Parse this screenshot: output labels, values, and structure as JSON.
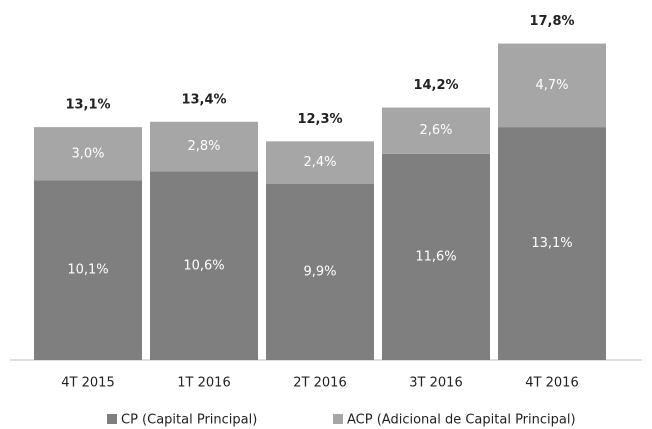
{
  "chart_data": {
    "type": "stacked_bar",
    "categories": [
      "4T 2015",
      "1T 2016",
      "2T 2016",
      "3T 2016",
      "4T 2016"
    ],
    "series": [
      {
        "name": "CP (Capital Principal)",
        "color": "#7f7f7f",
        "values": [
          10.1,
          10.6,
          9.9,
          11.6,
          13.1
        ],
        "value_labels": [
          "10,1%",
          "10,6%",
          "9,9%",
          "11,6%",
          "13,1%"
        ]
      },
      {
        "name": "ACP (Adicional de Capital Principal)",
        "color": "#a6a6a6",
        "values": [
          3.0,
          2.8,
          2.4,
          2.6,
          4.7
        ],
        "value_labels": [
          "3,0%",
          "2,8%",
          "2,4%",
          "2,6%",
          "4,7%"
        ]
      }
    ],
    "totals": [
      13.1,
      13.4,
      12.3,
      14.2,
      17.8
    ],
    "total_labels": [
      "13,1%",
      "13,4%",
      "12,3%",
      "14,2%",
      "17,8%"
    ],
    "ylim": [
      0,
      18
    ],
    "legend": "bottom"
  }
}
